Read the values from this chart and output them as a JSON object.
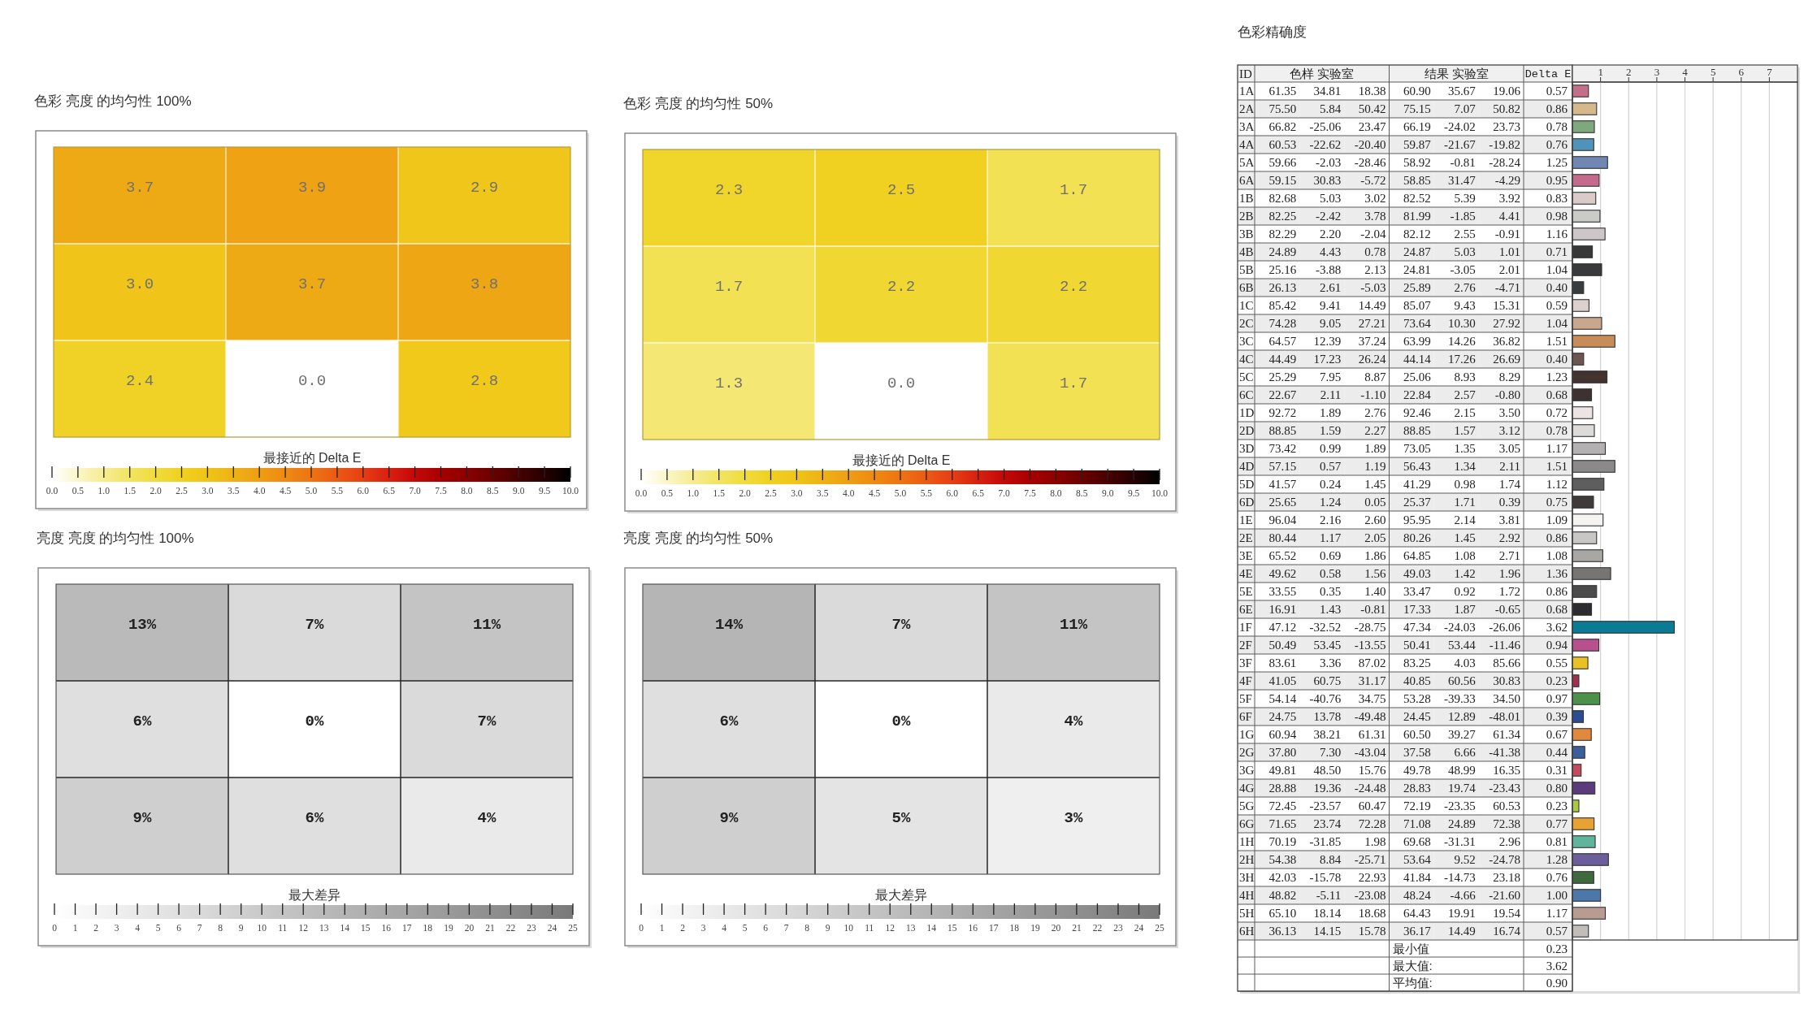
{
  "chart_data": [
    {
      "type": "heatmap",
      "title": "色彩 亮度 的均匀性 100%",
      "categories": [
        null,
        null,
        null
      ],
      "y_categories": [
        null,
        null,
        null
      ],
      "cells": [
        [
          3.7,
          3.9,
          2.9
        ],
        [
          3.0,
          3.7,
          3.8
        ],
        [
          2.4,
          0.0,
          2.8
        ]
      ],
      "cell_labels": [
        [
          "3.7",
          "3.9",
          "2.9"
        ],
        [
          "3.0",
          "3.7",
          "3.8"
        ],
        [
          "2.4",
          "0.0",
          "2.8"
        ]
      ],
      "clabel": "最接近的 Delta E",
      "clim": [
        0,
        10
      ],
      "cticks": [
        {
          "value": 0,
          "label": "0.0"
        },
        0.5,
        {
          "value": 1,
          "label": "1.0"
        },
        1.5,
        {
          "value": 2,
          "label": "2.0"
        },
        2.5,
        {
          "value": 3,
          "label": "3.0"
        },
        3.5,
        {
          "value": 4,
          "label": "4.0"
        },
        4.5,
        {
          "value": 5,
          "label": "5.0"
        },
        5.5,
        {
          "value": 6,
          "label": "6.0"
        },
        6.5,
        {
          "value": 7,
          "label": "7.0"
        },
        7.5,
        {
          "value": 8,
          "label": "8.0"
        },
        8.5,
        {
          "value": 9,
          "label": "9.0"
        },
        9.5,
        {
          "value": 10,
          "label": "10.0"
        }
      ],
      "colors": [
        "#ffffff",
        "#fbf6c8",
        "#f6ec90",
        "#f2e462",
        "#f0dc3c",
        "#f0d020",
        "#f0c418",
        "#eeb215",
        "#ee9e14",
        "#ee8a12",
        "#ed7412",
        "#ec5a14",
        "#e63e14",
        "#d82010",
        "#c40808",
        "#a80000",
        "#8c0000",
        "#6a0000",
        "#480000",
        "#260000",
        "#000000"
      ],
      "grid": true
    },
    {
      "type": "heatmap",
      "title": "色彩 亮度 的均匀性 50%",
      "categories": [
        null,
        null,
        null
      ],
      "y_categories": [
        null,
        null,
        null
      ],
      "cells": [
        [
          2.3,
          2.5,
          1.7
        ],
        [
          1.7,
          2.2,
          2.2
        ],
        [
          1.3,
          0.0,
          1.7
        ]
      ],
      "cell_labels": [
        [
          "2.3",
          "2.5",
          "1.7"
        ],
        [
          "1.7",
          "2.2",
          "2.2"
        ],
        [
          "1.3",
          "0.0",
          "1.7"
        ]
      ],
      "clabel": "最接近的 Delta E",
      "clim": [
        0,
        10
      ],
      "cticks": [
        {
          "value": 0,
          "label": "0.0"
        },
        0.5,
        {
          "value": 1,
          "label": "1.0"
        },
        1.5,
        {
          "value": 2,
          "label": "2.0"
        },
        2.5,
        {
          "value": 3,
          "label": "3.0"
        },
        3.5,
        {
          "value": 4,
          "label": "4.0"
        },
        4.5,
        {
          "value": 5,
          "label": "5.0"
        },
        5.5,
        {
          "value": 6,
          "label": "6.0"
        },
        6.5,
        {
          "value": 7,
          "label": "7.0"
        },
        7.5,
        {
          "value": 8,
          "label": "8.0"
        },
        8.5,
        {
          "value": 9,
          "label": "9.0"
        },
        9.5,
        {
          "value": 10,
          "label": "10.0"
        }
      ],
      "colors": [
        "#ffffff",
        "#fbf6c8",
        "#f6ec90",
        "#f2e462",
        "#f0dc3c",
        "#f0d020",
        "#f0c418",
        "#eeb215",
        "#ee9e14",
        "#ee8a12",
        "#ed7412",
        "#ec5a14",
        "#e63e14",
        "#d82010",
        "#c40808",
        "#a80000",
        "#8c0000",
        "#6a0000",
        "#480000",
        "#260000",
        "#000000"
      ],
      "grid": true
    },
    {
      "type": "heatmap",
      "title": "亮度 亮度 的均匀性 100%",
      "categories": [
        null,
        null,
        null
      ],
      "y_categories": [
        null,
        null,
        null
      ],
      "cells": [
        [
          13,
          7,
          11
        ],
        [
          6,
          0,
          7
        ],
        [
          9,
          6,
          4
        ]
      ],
      "cell_labels": [
        [
          "13%",
          "7%",
          "11%"
        ],
        [
          "6%",
          "0%",
          "7%"
        ],
        [
          "9%",
          "6%",
          "4%"
        ]
      ],
      "clabel": "最大差异",
      "clim": [
        0,
        25
      ],
      "cticks": [
        0,
        1,
        2,
        3,
        4,
        5,
        6,
        7,
        8,
        9,
        10,
        11,
        12,
        13,
        14,
        15,
        16,
        17,
        18,
        19,
        20,
        21,
        22,
        23,
        24,
        25
      ],
      "colors": [
        "#ffffff",
        "#7a7a7a"
      ],
      "grid": true
    },
    {
      "type": "heatmap",
      "title": "亮度 亮度 的均匀性 50%",
      "categories": [
        null,
        null,
        null
      ],
      "y_categories": [
        null,
        null,
        null
      ],
      "cells": [
        [
          14,
          7,
          11
        ],
        [
          6,
          0,
          4
        ],
        [
          9,
          5,
          3
        ]
      ],
      "cell_labels": [
        [
          "14%",
          "7%",
          "11%"
        ],
        [
          "6%",
          "0%",
          "4%"
        ],
        [
          "9%",
          "5%",
          "3%"
        ]
      ],
      "clabel": "最大差异",
      "clim": [
        0,
        25
      ],
      "cticks": [
        0,
        1,
        2,
        3,
        4,
        5,
        6,
        7,
        8,
        9,
        10,
        11,
        12,
        13,
        14,
        15,
        16,
        17,
        18,
        19,
        20,
        21,
        22,
        23,
        24,
        25
      ],
      "colors": [
        "#ffffff",
        "#7a7a7a"
      ],
      "grid": true
    },
    {
      "type": "heatmap",
      "title": "色彩精确度",
      "ylabel": "ID",
      "categories": [
        null,
        "色样 实验室",
        null,
        null,
        "结果 实验室",
        null
      ],
      "y_categories": [
        "1A",
        "2A",
        "3A",
        "4A",
        "5A",
        "6A",
        "1B",
        "2B",
        "3B",
        "4B",
        "5B",
        "6B",
        "1C",
        "2C",
        "3C",
        "4C",
        "5C",
        "6C",
        "1D",
        "2D",
        "3D",
        "4D",
        "5D",
        "6D",
        "1E",
        "2E",
        "3E",
        "4E",
        "5E",
        "6E",
        "1F",
        "2F",
        "3F",
        "4F",
        "5F",
        "6F",
        "1G",
        "2G",
        "3G",
        "4G",
        "5G",
        "6G",
        "1H",
        "2H",
        "3H",
        "4H",
        "5H",
        "6H"
      ],
      "cells": [
        [
          61.35,
          34.81,
          18.38,
          60.9,
          35.67,
          19.06
        ],
        [
          75.5,
          5.84,
          50.42,
          75.15,
          7.07,
          50.82
        ],
        [
          66.82,
          -25.06,
          23.47,
          66.19,
          -24.02,
          23.73
        ],
        [
          60.53,
          -22.62,
          -20.4,
          59.87,
          -21.67,
          -19.82
        ],
        [
          59.66,
          -2.03,
          -28.46,
          58.92,
          -0.81,
          -28.24
        ],
        [
          59.15,
          30.83,
          -5.72,
          58.85,
          31.47,
          -4.29
        ],
        [
          82.68,
          5.03,
          3.02,
          82.52,
          5.39,
          3.92
        ],
        [
          82.25,
          -2.42,
          3.78,
          81.99,
          -1.85,
          4.41
        ],
        [
          82.29,
          2.2,
          -2.04,
          82.12,
          2.55,
          -0.91
        ],
        [
          24.89,
          4.43,
          0.78,
          24.87,
          5.03,
          1.01
        ],
        [
          25.16,
          -3.88,
          2.13,
          24.81,
          -3.05,
          2.01
        ],
        [
          26.13,
          2.61,
          -5.03,
          25.89,
          2.76,
          -4.71
        ],
        [
          85.42,
          9.41,
          14.49,
          85.07,
          9.43,
          15.31
        ],
        [
          74.28,
          9.05,
          27.21,
          73.64,
          10.3,
          27.92
        ],
        [
          64.57,
          12.39,
          37.24,
          63.99,
          14.26,
          36.82
        ],
        [
          44.49,
          17.23,
          26.24,
          44.14,
          17.26,
          26.69
        ],
        [
          25.29,
          7.95,
          8.87,
          25.06,
          8.93,
          8.29
        ],
        [
          22.67,
          2.11,
          -1.1,
          22.84,
          2.57,
          -0.8
        ],
        [
          92.72,
          1.89,
          2.76,
          92.46,
          2.15,
          3.5
        ],
        [
          88.85,
          1.59,
          2.27,
          88.85,
          1.57,
          3.12
        ],
        [
          73.42,
          0.99,
          1.89,
          73.05,
          1.35,
          3.05
        ],
        [
          57.15,
          0.57,
          1.19,
          56.43,
          1.34,
          2.11
        ],
        [
          41.57,
          0.24,
          1.45,
          41.29,
          0.98,
          1.74
        ],
        [
          25.65,
          1.24,
          0.05,
          25.37,
          1.71,
          0.39
        ],
        [
          96.04,
          2.16,
          2.6,
          95.95,
          2.14,
          3.81
        ],
        [
          80.44,
          1.17,
          2.05,
          80.26,
          1.45,
          2.92
        ],
        [
          65.52,
          0.69,
          1.86,
          64.85,
          1.08,
          2.71
        ],
        [
          49.62,
          0.58,
          1.56,
          49.03,
          1.42,
          1.96
        ],
        [
          33.55,
          0.35,
          1.4,
          33.47,
          0.92,
          1.72
        ],
        [
          16.91,
          1.43,
          -0.81,
          17.33,
          1.87,
          -0.65
        ],
        [
          47.12,
          -32.52,
          -28.75,
          47.34,
          -24.03,
          -26.06
        ],
        [
          50.49,
          53.45,
          -13.55,
          50.41,
          53.44,
          -11.46
        ],
        [
          83.61,
          3.36,
          87.02,
          83.25,
          4.03,
          85.66
        ],
        [
          41.05,
          60.75,
          31.17,
          40.85,
          60.56,
          30.83
        ],
        [
          54.14,
          -40.76,
          34.75,
          53.28,
          -39.33,
          34.5
        ],
        [
          24.75,
          13.78,
          -49.48,
          24.45,
          12.89,
          -48.01
        ],
        [
          60.94,
          38.21,
          61.31,
          60.5,
          39.27,
          61.34
        ],
        [
          37.8,
          7.3,
          -43.04,
          37.58,
          6.66,
          -41.38
        ],
        [
          49.81,
          48.5,
          15.76,
          49.78,
          48.99,
          16.35
        ],
        [
          28.88,
          19.36,
          -24.48,
          28.83,
          19.74,
          -23.43
        ],
        [
          72.45,
          -23.57,
          60.47,
          72.19,
          -23.35,
          60.53
        ],
        [
          71.65,
          23.74,
          72.28,
          71.08,
          24.89,
          72.38
        ],
        [
          70.19,
          -31.85,
          1.98,
          69.68,
          -31.31,
          2.96
        ],
        [
          54.38,
          8.84,
          -25.71,
          53.64,
          9.52,
          -24.78
        ],
        [
          42.03,
          -15.78,
          22.93,
          41.84,
          -14.73,
          23.18
        ],
        [
          48.82,
          -5.11,
          -23.08,
          48.24,
          -4.66,
          -21.6
        ],
        [
          65.1,
          18.14,
          18.68,
          64.43,
          19.91,
          19.54
        ],
        [
          36.13,
          14.15,
          15.78,
          36.17,
          14.49,
          16.74
        ]
      ],
      "cell_labels": [
        [
          "61.35",
          "34.81",
          "18.38",
          "60.90",
          "35.67",
          "19.06"
        ],
        [
          "75.50",
          "5.84",
          "50.42",
          "75.15",
          "7.07",
          "50.82"
        ],
        [
          "66.82",
          "-25.06",
          "23.47",
          "66.19",
          "-24.02",
          "23.73"
        ],
        [
          "60.53",
          "-22.62",
          "-20.40",
          "59.87",
          "-21.67",
          "-19.82"
        ],
        [
          "59.66",
          "-2.03",
          "-28.46",
          "58.92",
          "-0.81",
          "-28.24"
        ],
        [
          "59.15",
          "30.83",
          "-5.72",
          "58.85",
          "31.47",
          "-4.29"
        ],
        [
          "82.68",
          "5.03",
          "3.02",
          "82.52",
          "5.39",
          "3.92"
        ],
        [
          "82.25",
          "-2.42",
          "3.78",
          "81.99",
          "-1.85",
          "4.41"
        ],
        [
          "82.29",
          "2.20",
          "-2.04",
          "82.12",
          "2.55",
          "-0.91"
        ],
        [
          "24.89",
          "4.43",
          "0.78",
          "24.87",
          "5.03",
          "1.01"
        ],
        [
          "25.16",
          "-3.88",
          "2.13",
          "24.81",
          "-3.05",
          "2.01"
        ],
        [
          "26.13",
          "2.61",
          "-5.03",
          "25.89",
          "2.76",
          "-4.71"
        ],
        [
          "85.42",
          "9.41",
          "14.49",
          "85.07",
          "9.43",
          "15.31"
        ],
        [
          "74.28",
          "9.05",
          "27.21",
          "73.64",
          "10.30",
          "27.92"
        ],
        [
          "64.57",
          "12.39",
          "37.24",
          "63.99",
          "14.26",
          "36.82"
        ],
        [
          "44.49",
          "17.23",
          "26.24",
          "44.14",
          "17.26",
          "26.69"
        ],
        [
          "25.29",
          "7.95",
          "8.87",
          "25.06",
          "8.93",
          "8.29"
        ],
        [
          "22.67",
          "2.11",
          "-1.10",
          "22.84",
          "2.57",
          "-0.80"
        ],
        [
          "92.72",
          "1.89",
          "2.76",
          "92.46",
          "2.15",
          "3.50"
        ],
        [
          "88.85",
          "1.59",
          "2.27",
          "88.85",
          "1.57",
          "3.12"
        ],
        [
          "73.42",
          "0.99",
          "1.89",
          "73.05",
          "1.35",
          "3.05"
        ],
        [
          "57.15",
          "0.57",
          "1.19",
          "56.43",
          "1.34",
          "2.11"
        ],
        [
          "41.57",
          "0.24",
          "1.45",
          "41.29",
          "0.98",
          "1.74"
        ],
        [
          "25.65",
          "1.24",
          "0.05",
          "25.37",
          "1.71",
          "0.39"
        ],
        [
          "96.04",
          "2.16",
          "2.60",
          "95.95",
          "2.14",
          "3.81"
        ],
        [
          "80.44",
          "1.17",
          "2.05",
          "80.26",
          "1.45",
          "2.92"
        ],
        [
          "65.52",
          "0.69",
          "1.86",
          "64.85",
          "1.08",
          "2.71"
        ],
        [
          "49.62",
          "0.58",
          "1.56",
          "49.03",
          "1.42",
          "1.96"
        ],
        [
          "33.55",
          "0.35",
          "1.40",
          "33.47",
          "0.92",
          "1.72"
        ],
        [
          "16.91",
          "1.43",
          "-0.81",
          "17.33",
          "1.87",
          "-0.65"
        ],
        [
          "47.12",
          "-32.52",
          "-28.75",
          "47.34",
          "-24.03",
          "-26.06"
        ],
        [
          "50.49",
          "53.45",
          "-13.55",
          "50.41",
          "53.44",
          "-11.46"
        ],
        [
          "83.61",
          "3.36",
          "87.02",
          "83.25",
          "4.03",
          "85.66"
        ],
        [
          "41.05",
          "60.75",
          "31.17",
          "40.85",
          "60.56",
          "30.83"
        ],
        [
          "54.14",
          "-40.76",
          "34.75",
          "53.28",
          "-39.33",
          "34.50"
        ],
        [
          "24.75",
          "13.78",
          "-49.48",
          "24.45",
          "12.89",
          "-48.01"
        ],
        [
          "60.94",
          "38.21",
          "61.31",
          "60.50",
          "39.27",
          "61.34"
        ],
        [
          "37.80",
          "7.30",
          "-43.04",
          "37.58",
          "6.66",
          "-41.38"
        ],
        [
          "49.81",
          "48.50",
          "15.76",
          "49.78",
          "48.99",
          "16.35"
        ],
        [
          "28.88",
          "19.36",
          "-24.48",
          "28.83",
          "19.74",
          "-23.43"
        ],
        [
          "72.45",
          "-23.57",
          "60.47",
          "72.19",
          "-23.35",
          "60.53"
        ],
        [
          "71.65",
          "23.74",
          "72.28",
          "71.08",
          "24.89",
          "72.38"
        ],
        [
          "70.19",
          "-31.85",
          "1.98",
          "69.68",
          "-31.31",
          "2.96"
        ],
        [
          "54.38",
          "8.84",
          "-25.71",
          "53.64",
          "9.52",
          "-24.78"
        ],
        [
          "42.03",
          "-15.78",
          "22.93",
          "41.84",
          "-14.73",
          "23.18"
        ],
        [
          "48.82",
          "-5.11",
          "-23.08",
          "48.24",
          "-4.66",
          "-21.60"
        ],
        [
          "65.10",
          "18.14",
          "18.68",
          "64.43",
          "19.91",
          "19.54"
        ],
        [
          "36.13",
          "14.15",
          "15.78",
          "36.17",
          "14.49",
          "16.74"
        ]
      ],
      "annotations": [
        "最小值",
        "0.23",
        "最大值:",
        "3.62",
        "平均值:",
        "0.90"
      ]
    },
    {
      "type": "bar",
      "orientation": "horizontal",
      "xlabel": "Delta E",
      "categories": [
        null,
        null,
        null,
        null,
        null,
        null,
        null,
        null,
        null,
        null,
        null,
        null,
        null,
        null,
        null,
        null,
        null,
        null,
        null,
        null,
        null,
        null,
        null,
        null,
        null,
        null,
        null,
        null,
        null,
        null,
        null,
        null,
        null,
        null,
        null,
        null,
        null,
        null,
        null,
        null,
        null,
        null,
        null,
        null,
        null,
        null,
        null,
        null
      ],
      "values": [
        0.57,
        0.86,
        0.78,
        0.76,
        1.25,
        0.95,
        0.83,
        0.98,
        1.16,
        0.71,
        1.04,
        0.4,
        0.59,
        1.04,
        1.51,
        0.4,
        1.23,
        0.68,
        0.72,
        0.78,
        1.17,
        1.51,
        1.12,
        0.75,
        1.09,
        0.86,
        1.08,
        1.36,
        0.86,
        0.68,
        3.62,
        0.94,
        0.55,
        0.23,
        0.97,
        0.39,
        0.67,
        0.44,
        0.31,
        0.8,
        0.23,
        0.77,
        0.81,
        1.28,
        0.76,
        1.0,
        1.17,
        0.57
      ],
      "value_labels": [
        "0.57",
        "0.86",
        "0.78",
        "0.76",
        "1.25",
        "0.95",
        "0.83",
        "0.98",
        "1.16",
        "0.71",
        "1.04",
        "0.40",
        "0.59",
        "1.04",
        "1.51",
        "0.40",
        "1.23",
        "0.68",
        "0.72",
        "0.78",
        "1.17",
        "1.51",
        "1.12",
        "0.75",
        "1.09",
        "0.86",
        "1.08",
        "1.36",
        "0.86",
        "0.68",
        "3.62",
        "0.94",
        "0.55",
        "0.23",
        "0.97",
        "0.39",
        "0.67",
        "0.44",
        "0.31",
        "0.80",
        "0.23",
        "0.77",
        "0.81",
        "1.28",
        "0.76",
        "1.00",
        "1.17",
        "0.57"
      ],
      "colors": [
        "#c4708a",
        "#d6b98a",
        "#80a87e",
        "#4f93b8",
        "#6f87b2",
        "#c46a8c",
        "#d8cbc8",
        "#cacac6",
        "#cdc6c8",
        "#383838",
        "#383a3c",
        "#363c40",
        "#ddd0cc",
        "#c9a78f",
        "#c88c58",
        "#6b5750",
        "#43332f",
        "#3c3232",
        "#ece4e3",
        "#dddbd9",
        "#b3b1b1",
        "#8b8989",
        "#5e5e5e",
        "#3f3939",
        "#f5f3ef",
        "#c9c7c5",
        "#a9a7a3",
        "#777574",
        "#4b4b4b",
        "#2d2d31",
        "#0a7b94",
        "#b8508e",
        "#e8c224",
        "#a2304c",
        "#4b9149",
        "#2b4b92",
        "#e0883c",
        "#3b5e9c",
        "#c24c5c",
        "#5b3b7b",
        "#aac842",
        "#e8a232",
        "#60b49b",
        "#6b5e9b",
        "#40693f",
        "#4b77a9",
        "#b89b91",
        "#c1bdb9"
      ],
      "xlim": [
        0,
        8
      ],
      "xticks": [
        1,
        2,
        3,
        4,
        5,
        6,
        7
      ],
      "grid": "x"
    }
  ]
}
